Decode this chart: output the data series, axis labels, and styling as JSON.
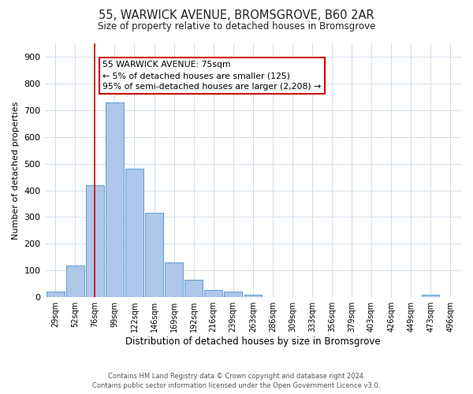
{
  "title": "55, WARWICK AVENUE, BROMSGROVE, B60 2AR",
  "subtitle": "Size of property relative to detached houses in Bromsgrove",
  "xlabel": "Distribution of detached houses by size in Bromsgrove",
  "ylabel": "Number of detached properties",
  "bar_labels": [
    "29sqm",
    "52sqm",
    "76sqm",
    "99sqm",
    "122sqm",
    "146sqm",
    "169sqm",
    "192sqm",
    "216sqm",
    "239sqm",
    "263sqm",
    "286sqm",
    "309sqm",
    "333sqm",
    "356sqm",
    "379sqm",
    "403sqm",
    "426sqm",
    "449sqm",
    "473sqm",
    "496sqm"
  ],
  "bar_values": [
    22,
    120,
    420,
    730,
    480,
    315,
    130,
    65,
    28,
    22,
    10,
    0,
    0,
    0,
    0,
    0,
    0,
    0,
    0,
    8,
    0
  ],
  "bar_color": "#aec6e8",
  "bar_edge_color": "#5a9fd4",
  "vline_x": 2.0,
  "vline_color": "#cc0000",
  "ylim": [
    0,
    950
  ],
  "yticks": [
    0,
    100,
    200,
    300,
    400,
    500,
    600,
    700,
    800,
    900
  ],
  "annotation_line1": "55 WARWICK AVENUE: 75sqm",
  "annotation_line2": "← 5% of detached houses are smaller (125)",
  "annotation_line3": "95% of semi-detached houses are larger (2,208) →",
  "annotation_box_color": "#ffffff",
  "annotation_box_edge": "#cc0000",
  "footer_line1": "Contains HM Land Registry data © Crown copyright and database right 2024.",
  "footer_line2": "Contains public sector information licensed under the Open Government Licence v3.0.",
  "background_color": "#ffffff",
  "grid_color": "#d0dce8"
}
